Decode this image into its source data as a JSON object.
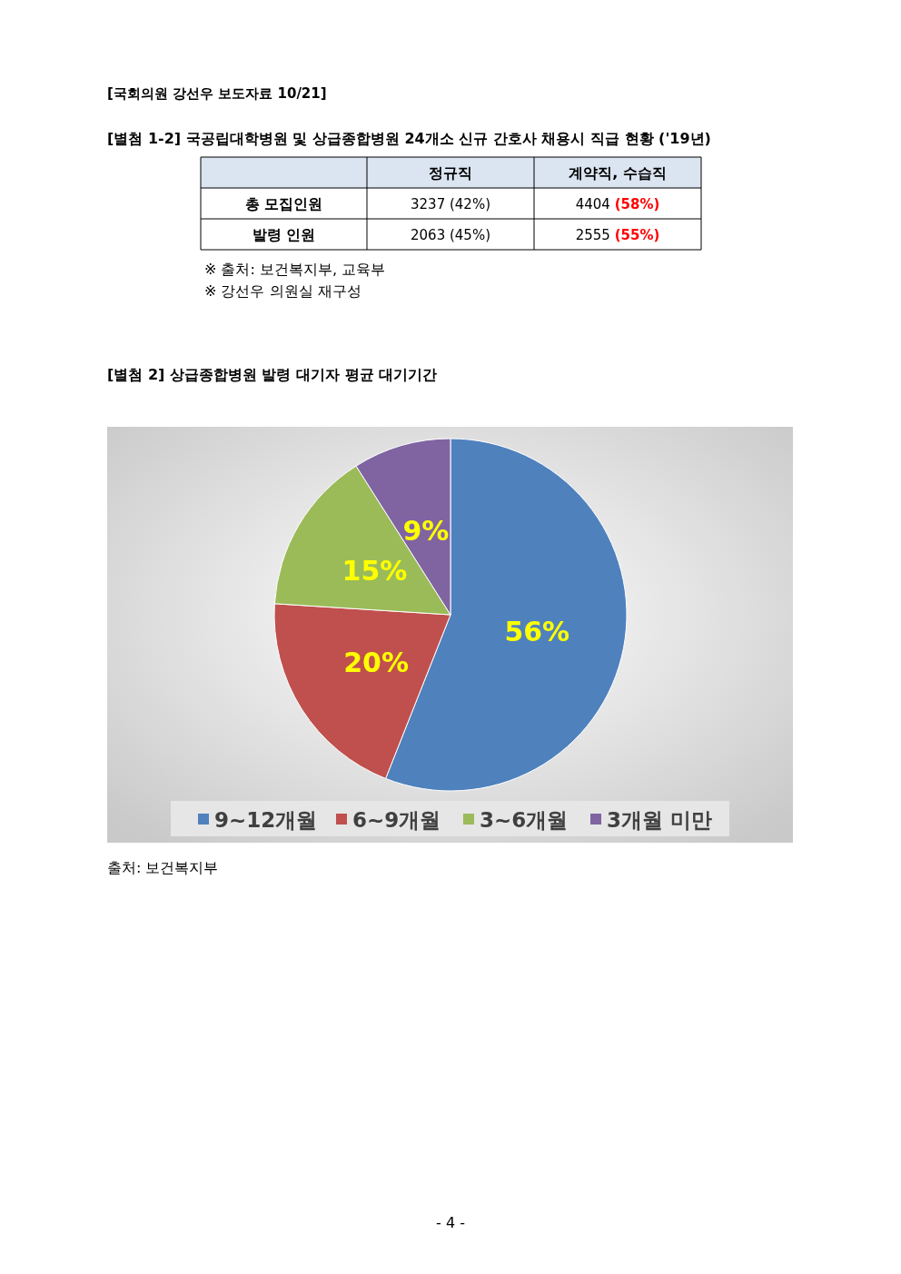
{
  "chart_data": [
    {
      "type": "other",
      "title": "[별첨 1-2] 국공립대학병원 및 상급종합병원 24개소 신규 간호사 채용시 직급 현황 ('19년)",
      "subtitle": "[국회의원 강선우 보도자료 10/21]",
      "categories": [
        "정규직",
        "계약직, 수습직"
      ],
      "y_categories": [
        "총 모집인원",
        "발령 인원"
      ],
      "cell_labels": [
        [
          "3237  (42%)",
          "4404  (58%)"
        ],
        [
          "2063  (45%)",
          "2555  (55%)"
        ]
      ],
      "annotations": [
        "※ 출처: 보건복지부, 교육부",
        "※ 강선우 의원실 재구성"
      ]
    },
    {
      "type": "pie",
      "title": "[별첨 2] 상급종합병원 발령 대기자 평균 대기기간",
      "categories": [
        "9~12개월",
        "6~9개월",
        "3~6개월",
        "3개월 미만"
      ],
      "values": [
        56,
        20,
        15,
        9
      ],
      "colors": [
        "#4f81bd",
        "#c0504d",
        "#9bbb59",
        "#8064a2"
      ],
      "value_labels": [
        "56%",
        "20%",
        "15%",
        "9%"
      ],
      "legend": "bottom",
      "annotations": [
        "출처: 보건복지부",
        "- 4 -"
      ]
    }
  ]
}
